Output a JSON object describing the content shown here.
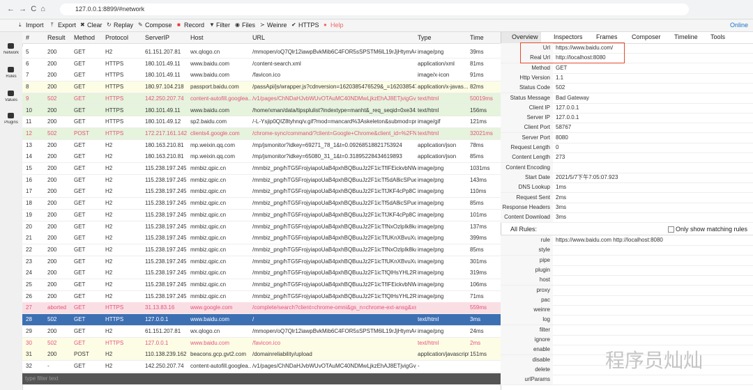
{
  "browser": {
    "url": "127.0.0.1:8899/#network"
  },
  "toolbar": {
    "items": [
      "Import",
      "Export",
      "Clear",
      "Replay",
      "Compose",
      "Record",
      "Filter",
      "Files",
      "Weinre",
      "HTTPS",
      "Help"
    ],
    "online": "Online"
  },
  "sidebar": {
    "items": [
      "Network",
      "Rules",
      "Values",
      "Plugins"
    ]
  },
  "table": {
    "columns": [
      "#",
      "Result",
      "Method",
      "Protocol",
      "ServerIP",
      "Host",
      "URL",
      "Type",
      "Time"
    ],
    "rows": [
      [
        "5",
        "200",
        "GET",
        "H2",
        "61.151.207.81",
        "wx.qlogo.cn",
        "/mmopen/oQ7Qlr12iawpBvkMib6C4FOR5sSPSTM6lL19rJjHtymA4Z...",
        "image/png",
        "39ms"
      ],
      [
        "6",
        "200",
        "GET",
        "HTTPS",
        "180.101.49.11",
        "www.baidu.com",
        "/content-search.xml",
        "application/xml",
        "81ms"
      ],
      [
        "7",
        "200",
        "GET",
        "HTTPS",
        "180.101.49.11",
        "www.baidu.com",
        "/favicon.ico",
        "image/x-icon",
        "91ms"
      ],
      [
        "8",
        "200",
        "GET",
        "HTTPS",
        "180.97.104.218",
        "passport.baidu.com",
        "/passApi/js/wrapper.js?cdnversion=1620385476529&_=1620385476123",
        "application/x-javas...",
        "82ms"
      ],
      [
        "9",
        "502",
        "GET",
        "HTTPS",
        "142.250.207.74",
        "content-autofill.googlea...",
        "/v1/pages/ChNDaHJvbWUvOTAuMC40NDMwLjkzEhAJ8ETjvigGvjkSB...",
        "text/html",
        "50019ms"
      ],
      [
        "10",
        "200",
        "GET",
        "HTTPS",
        "180.101.49.11",
        "www.baidu.com",
        "/home/xman/data/tipsplulist?indextype=manht&_req_seqid=0xe3415...",
        "text/html",
        "156ms"
      ],
      [
        "11",
        "200",
        "GET",
        "HTTPS",
        "180.101.49.12",
        "sp2.baidu.com",
        "/-L-Ysjip0QIZ8tyhnq/v.gif?mod=mancard%3Askeleton&submod=pres...",
        "image/gif",
        "121ms"
      ],
      [
        "12",
        "502",
        "POST",
        "HTTPS",
        "172.217.161.142",
        "clients4.google.com",
        "/chrome-sync/command/?client=Google+Chrome&client_id=%2FNre...",
        "text/html",
        "32021ms"
      ],
      [
        "13",
        "200",
        "GET",
        "H2",
        "180.163.210.81",
        "mp.weixin.qq.com",
        "/mp/jsmonitor?idkey=69271_78_1&t=0.09268518821753924",
        "application/json",
        "78ms"
      ],
      [
        "14",
        "200",
        "GET",
        "H2",
        "180.163.210.81",
        "mp.weixin.qq.com",
        "/mp/jsmonitor?idkey=65080_31_1&t=0.31895228434619893",
        "application/json",
        "85ms"
      ],
      [
        "15",
        "200",
        "GET",
        "H2",
        "115.238.197.245",
        "mmbiz.qpic.cn",
        "/mmbiz_png/hTG5FrojyiapoUaB4pxhBQBuuJz2F1icTfIFEickvbNWwty...",
        "image/png",
        "1031ms"
      ],
      [
        "16",
        "200",
        "GET",
        "H2",
        "115.238.197.245",
        "mmbiz.qpic.cn",
        "/mmbiz_png/hTG5FrojyiapoUaB4pxhBQBuuJz2F1icTf5dA8icSPueaPJ...",
        "image/png",
        "143ms"
      ],
      [
        "17",
        "200",
        "GET",
        "H2",
        "115.238.197.245",
        "mmbiz.qpic.cn",
        "/mmbiz_png/hTG5FrojyiapoUaB4pxhBQBuuJz2F1icTfJKF4cPp8C0Nq...",
        "image/png",
        "110ms"
      ],
      [
        "18",
        "200",
        "GET",
        "H2",
        "115.238.197.245",
        "mmbiz.qpic.cn",
        "/mmbiz_png/hTG5FrojyiapoUaB4pxhBQBuuJz2F1icTf5dA8icSPueaPJ...",
        "image/png",
        "85ms"
      ],
      [
        "19",
        "200",
        "GET",
        "H2",
        "115.238.197.245",
        "mmbiz.qpic.cn",
        "/mmbiz_png/hTG5FrojyiapoUaB4pxhBQBuuJz2F1icTfJKF4cPp8C0Nq...",
        "image/png",
        "101ms"
      ],
      [
        "20",
        "200",
        "GET",
        "H2",
        "115.238.197.245",
        "mmbiz.qpic.cn",
        "/mmbiz_png/hTG5FrojyiapoUaB4pxhBQBuuJz2F1icTfNxOzlpIk8kauQ...",
        "image/png",
        "137ms"
      ],
      [
        "21",
        "200",
        "GET",
        "H2",
        "115.238.197.245",
        "mmbiz.qpic.cn",
        "/mmbiz_png/hTG5FrojyiapoUaB4pxhBQBuuJz2F1icTfUKnXBvuXudXr...",
        "image/png",
        "399ms"
      ],
      [
        "22",
        "200",
        "GET",
        "H2",
        "115.238.197.245",
        "mmbiz.qpic.cn",
        "/mmbiz_png/hTG5FrojyiapoUaB4pxhBQBuuJz2F1icTfNxOzlpIk8kauQ...",
        "image/png",
        "85ms"
      ],
      [
        "23",
        "200",
        "GET",
        "H2",
        "115.238.197.245",
        "mmbiz.qpic.cn",
        "/mmbiz_png/hTG5FrojyiapoUaB4pxhBQBuuJz2F1icTfUKnXBvuXudXr...",
        "image/png",
        "301ms"
      ],
      [
        "24",
        "200",
        "GET",
        "H2",
        "115.238.197.245",
        "mmbiz.qpic.cn",
        "/mmbiz_png/hTG5FrojyiapoUaB4pxhBQBuuJz2F1icTfQlHsYHL2RlyJ...",
        "image/png",
        "319ms"
      ],
      [
        "25",
        "200",
        "GET",
        "H2",
        "115.238.197.245",
        "mmbiz.qpic.cn",
        "/mmbiz_png/hTG5FrojyiapoUaB4pxhBQBuuJz2F1icTfIFEickvbNWwty...",
        "image/png",
        "106ms"
      ],
      [
        "26",
        "200",
        "GET",
        "H2",
        "115.238.197.245",
        "mmbiz.qpic.cn",
        "/mmbiz_png/hTG5FrojyiapoUaB4pxhBQBuuJz2F1icTfQlHsYHL2RlyJ...",
        "image/png",
        "71ms"
      ],
      [
        "27",
        "aborted",
        "GET",
        "HTTPS",
        "31.13.83.16",
        "www.google.com",
        "/complete/search?client=chrome-omni&gs_n=chrome-ext-ansg&xssi=t...",
        null,
        "559ms"
      ],
      [
        "28",
        "502",
        "GET",
        "HTTPS",
        "127.0.0.1",
        "www.baidu.com",
        "/",
        "text/html",
        "3ms"
      ],
      [
        "29",
        "200",
        "GET",
        "H2",
        "61.151.207.81",
        "wx.qlogo.cn",
        "/mmopen/oQ7Qlr12iawpBvkMib6C4FOR5sSPSTM6lL19rJjHtymA4Z...",
        "image/png",
        "24ms"
      ],
      [
        "30",
        "502",
        "GET",
        "HTTPS",
        "127.0.0.1",
        "www.baidu.com",
        "/favicon.ico",
        "text/html",
        "2ms"
      ],
      [
        "31",
        "200",
        "POST",
        "H2",
        "110.138.239.162",
        "beacons.gcp.gvt2.com",
        "/domainreliability/upload",
        "application/javascript",
        "151ms"
      ],
      [
        "32",
        "-",
        "GET",
        "H2",
        "142.250.207.74",
        "content-autofill.googlea...",
        "/v1/pages/ChNDaHJvbWUvOTAuMC40NDMwLjkzEhAJ8ETjvigGvjkSB...",
        "-",
        null
      ]
    ],
    "filter_placeholder": "type filter text"
  },
  "panel": {
    "tabs": [
      "Overview",
      "Inspectors",
      "Frames",
      "Composer",
      "Timeline",
      "Tools"
    ],
    "overview": [
      {
        "label": "Url",
        "value": "https://www.baidu.com/"
      },
      {
        "label": "Real Url",
        "value": "http://localhost:8080"
      },
      {
        "label": "Method",
        "value": "GET"
      },
      {
        "label": "Http Version",
        "value": "1.1"
      },
      {
        "label": "Status Code",
        "value": "502"
      },
      {
        "label": "Status Message",
        "value": "Bad Gateway"
      },
      {
        "label": "Client IP",
        "value": "127.0.0.1"
      },
      {
        "label": "Server IP",
        "value": "127.0.0.1"
      },
      {
        "label": "Client Port",
        "value": "58767"
      },
      {
        "label": "Server Port",
        "value": "8080"
      },
      {
        "label": "Request Length",
        "value": "0"
      },
      {
        "label": "Content Length",
        "value": "273"
      },
      {
        "label": "Content Encoding",
        "value": null
      },
      {
        "label": "Start Date",
        "value": "2021/5/7下午7:05:07.923"
      },
      {
        "label": "DNS Lookup",
        "value": "1ms"
      },
      {
        "label": "Request Sent",
        "value": "2ms"
      },
      {
        "label": "Response Headers",
        "value": "3ms"
      },
      {
        "label": "Content Download",
        "value": "3ms"
      }
    ],
    "rules_title": "All Rules:",
    "rules_option": "Only show matching rules",
    "rules": [
      {
        "label": "rule",
        "value": "https://www.baidu.com http://localhost:8080"
      },
      {
        "label": "style",
        "value": null
      },
      {
        "label": "pipe",
        "value": null
      },
      {
        "label": "plugin",
        "value": null
      },
      {
        "label": "host",
        "value": null
      },
      {
        "label": "proxy",
        "value": null
      },
      {
        "label": "pac",
        "value": null
      },
      {
        "label": "weinre",
        "value": null
      },
      {
        "label": "log",
        "value": null
      },
      {
        "label": "filter",
        "value": null
      },
      {
        "label": "ignore",
        "value": null
      },
      {
        "label": "enable",
        "value": null
      },
      {
        "label": "disable",
        "value": null
      },
      {
        "label": "delete",
        "value": null
      },
      {
        "label": "urlParams",
        "value": null
      }
    ]
  },
  "watermark": "程序员灿灿"
}
